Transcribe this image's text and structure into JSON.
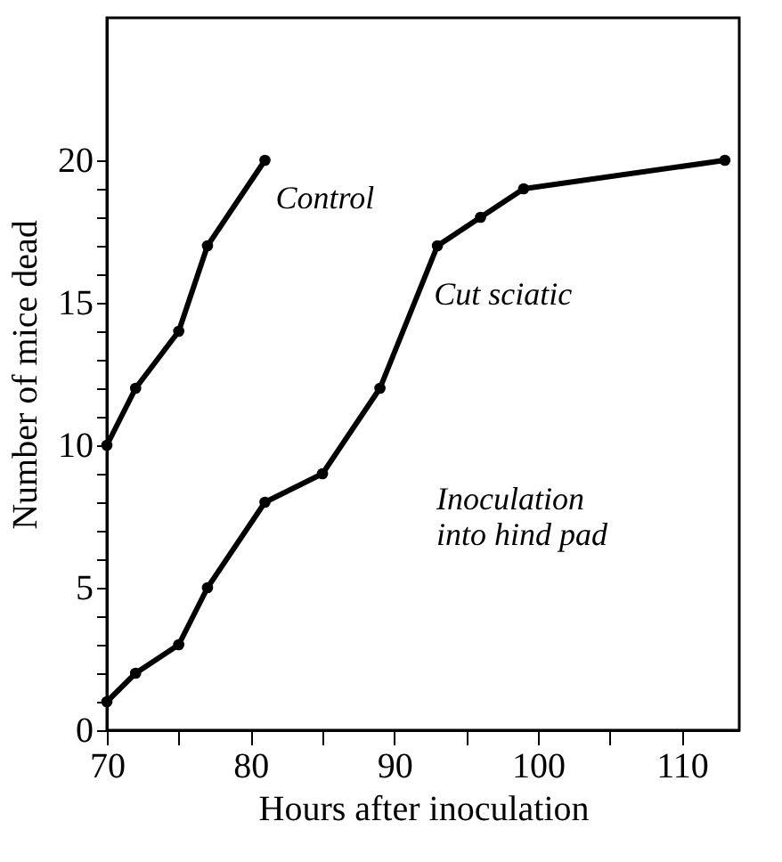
{
  "chart_data": {
    "type": "line",
    "xlabel": "Hours after inoculation",
    "ylabel": "Number of mice dead",
    "xlim": [
      70,
      114
    ],
    "ylim": [
      0,
      25
    ],
    "xticks": [
      70,
      {
        "value": 75,
        "label": null
      },
      80,
      {
        "value": 85,
        "label": null
      },
      90,
      {
        "value": 95,
        "label": null
      },
      100,
      {
        "value": 105,
        "label": null
      },
      110
    ],
    "yticks": [
      0,
      {
        "value": 1,
        "label": null
      },
      {
        "value": 2,
        "label": null
      },
      {
        "value": 3,
        "label": null
      },
      {
        "value": 4,
        "label": null
      },
      5,
      {
        "value": 6,
        "label": null
      },
      {
        "value": 7,
        "label": null
      },
      {
        "value": 8,
        "label": null
      },
      {
        "value": 9,
        "label": null
      },
      10,
      {
        "value": 11,
        "label": null
      },
      {
        "value": 12,
        "label": null
      },
      {
        "value": 13,
        "label": null
      },
      {
        "value": 14,
        "label": null
      },
      15,
      {
        "value": 16,
        "label": null
      },
      {
        "value": 17,
        "label": null
      },
      {
        "value": 18,
        "label": null
      },
      {
        "value": 19,
        "label": null
      },
      20
    ],
    "marker": "circle",
    "line_style": "solid",
    "grid": false,
    "series": [
      {
        "name": "Control",
        "color": "#000000",
        "x": [
          70,
          72,
          75,
          77,
          81
        ],
        "values": [
          10,
          12,
          14,
          17,
          20
        ]
      },
      {
        "name": "Cut sciatic",
        "color": "#000000",
        "x": [
          70,
          72,
          75,
          77,
          81,
          85,
          89,
          93,
          96,
          99,
          113
        ],
        "values": [
          1,
          2,
          3,
          5,
          8,
          9,
          12,
          17,
          18,
          19,
          20
        ]
      }
    ],
    "annotations": [
      "Inoculation\ninto hind pad"
    ]
  }
}
